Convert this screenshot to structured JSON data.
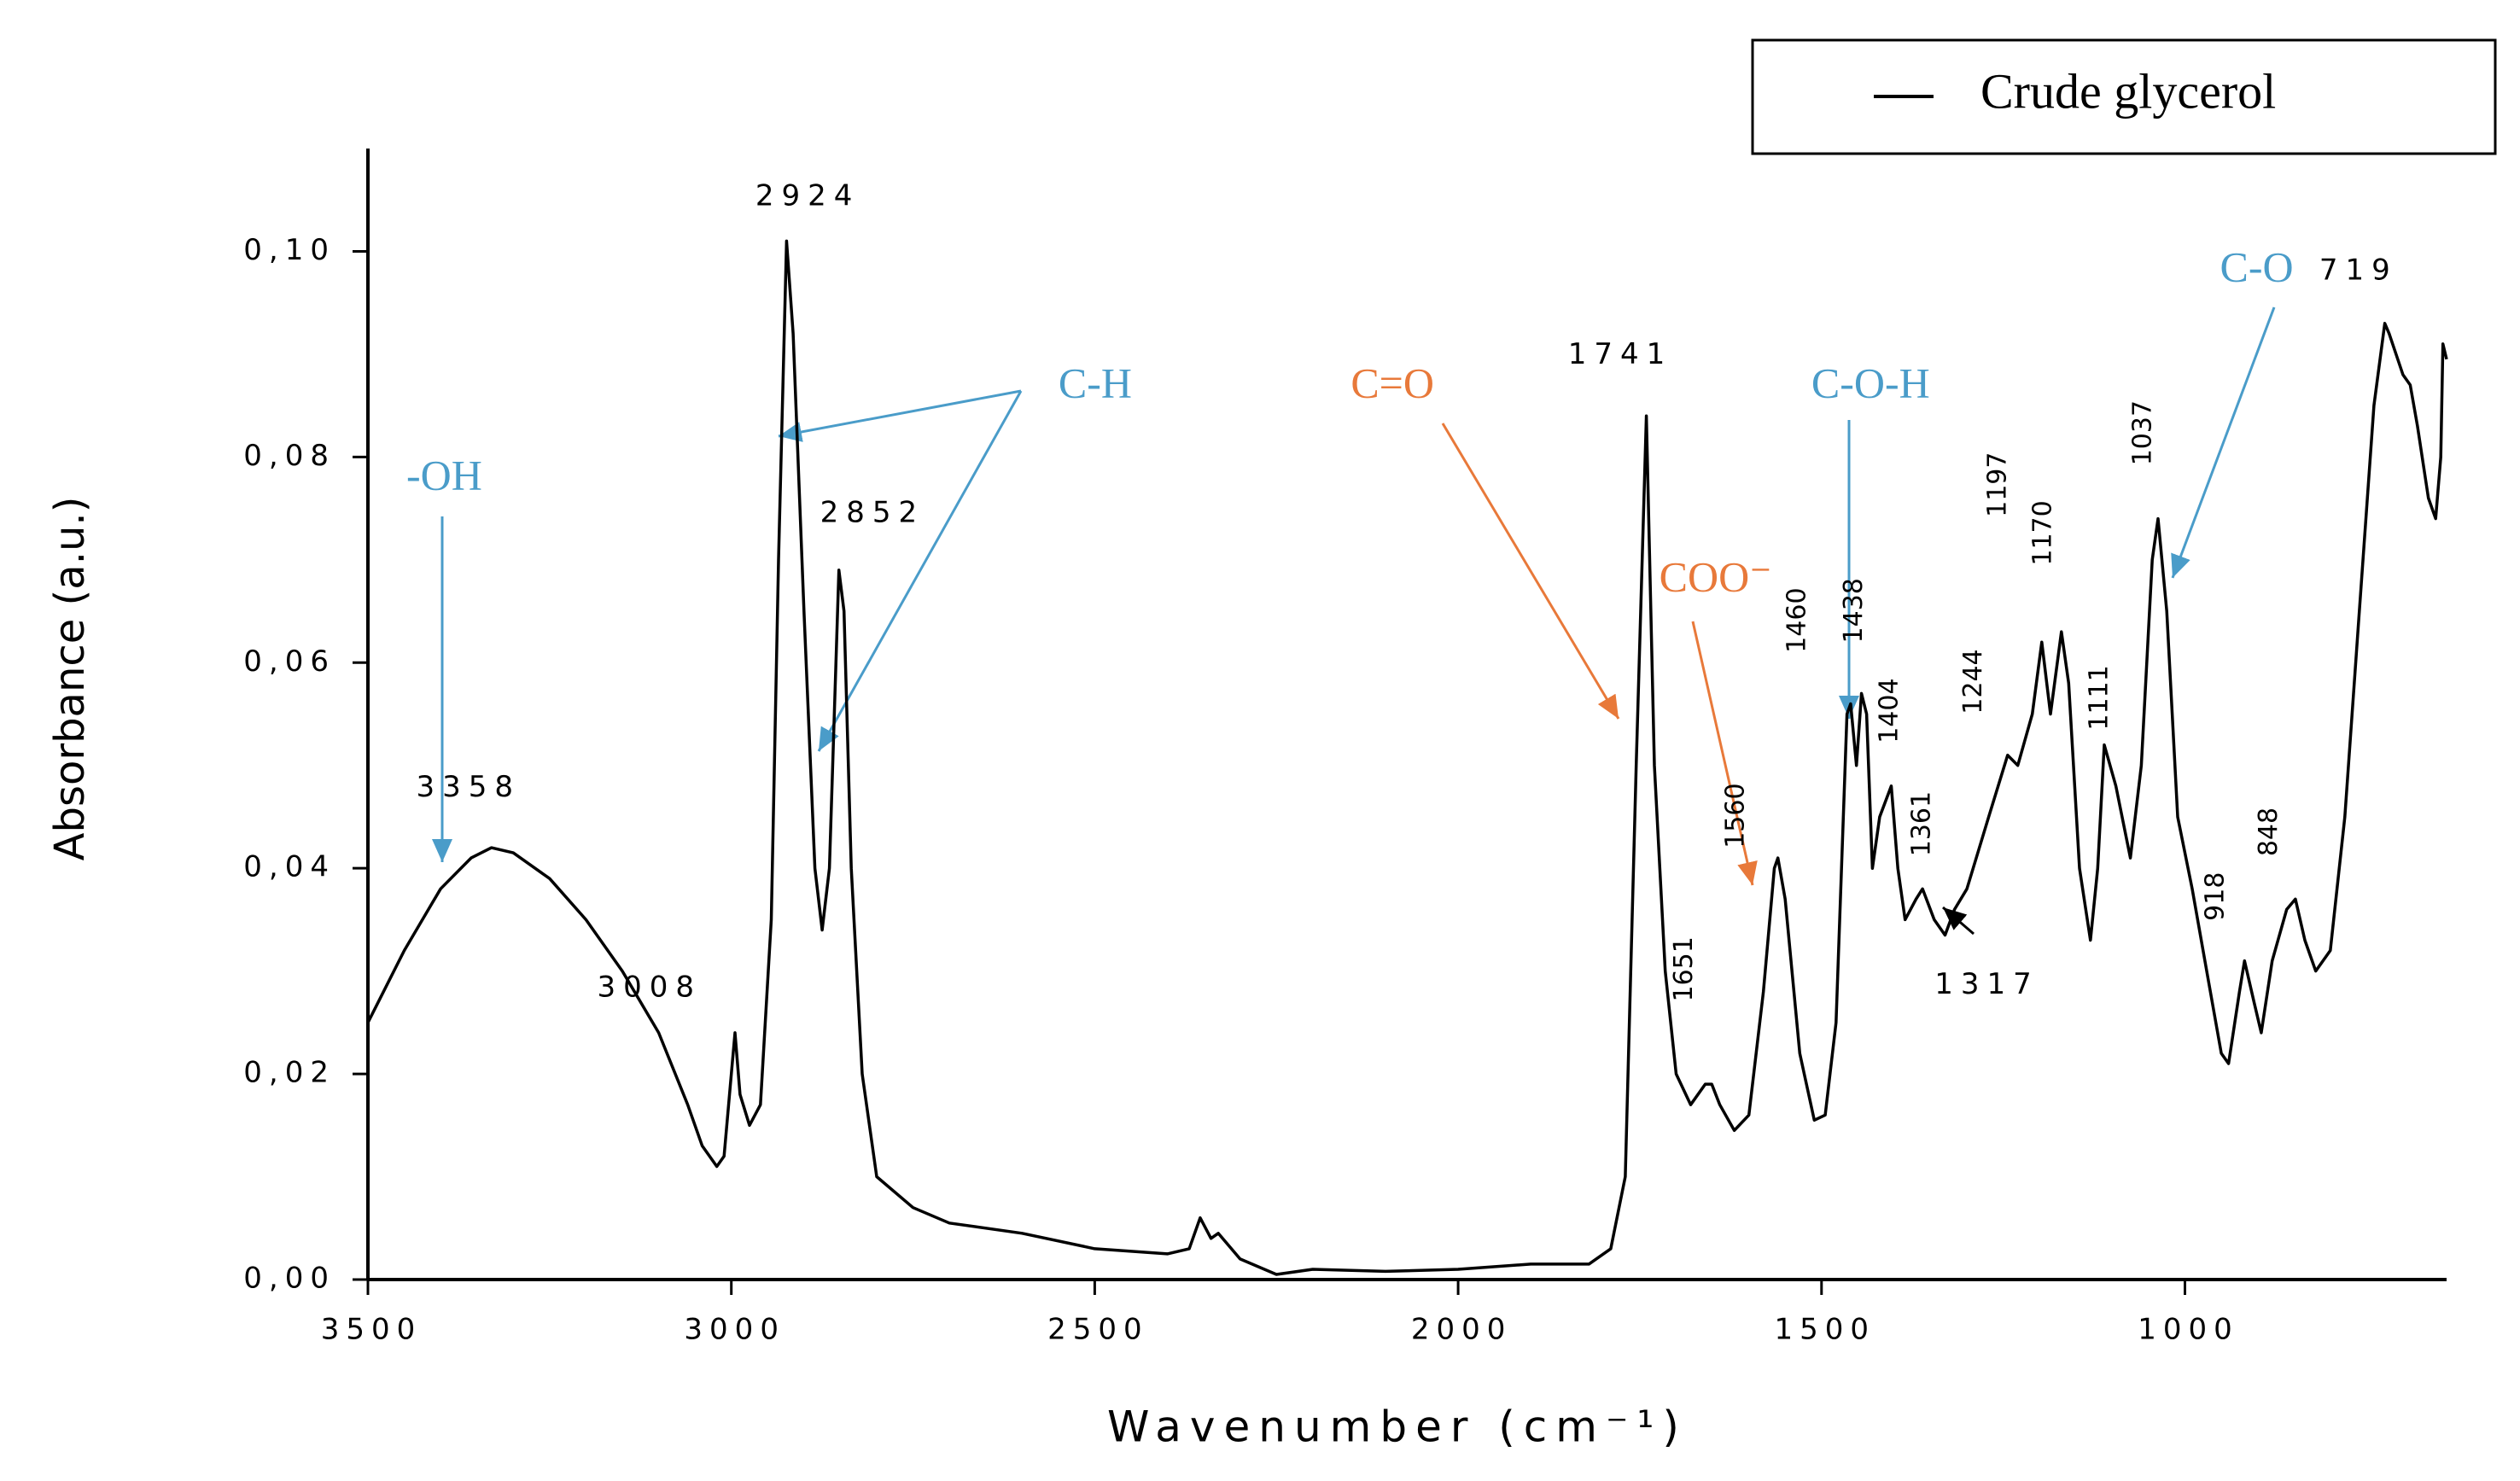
{
  "chart_data": {
    "type": "line",
    "x_label": "Wavenumber (cm⁻¹)",
    "y_label": "Absorbance (a.u.)",
    "xlim": [
      3500,
      640
    ],
    "ylim": [
      0,
      0.11
    ],
    "xticks": [
      3500,
      3000,
      2500,
      2000,
      1500,
      1000
    ],
    "yticks": [
      {
        "value": 0,
        "label": "0,00"
      },
      {
        "value": 0.02,
        "label": "0,02"
      },
      {
        "value": 0.04,
        "label": "0,04"
      },
      {
        "value": 0.06,
        "label": "0,06"
      },
      {
        "value": 0.08,
        "label": "0,08"
      },
      {
        "value": 0.1,
        "label": "0,10"
      }
    ],
    "legend": "top-right",
    "x": [
      3500,
      3450,
      3400,
      3358,
      3330,
      3300,
      3250,
      3200,
      3150,
      3100,
      3060,
      3040,
      3020,
      3010,
      3000,
      2995,
      2988,
      2975,
      2960,
      2945,
      2935,
      2924,
      2915,
      2900,
      2885,
      2875,
      2865,
      2852,
      2845,
      2835,
      2820,
      2800,
      2750,
      2700,
      2600,
      2500,
      2400,
      2370,
      2355,
      2340,
      2330,
      2300,
      2250,
      2200,
      2100,
      2000,
      1900,
      1820,
      1790,
      1770,
      1755,
      1741,
      1730,
      1715,
      1700,
      1680,
      1660,
      1651,
      1640,
      1620,
      1600,
      1580,
      1565,
      1560,
      1550,
      1530,
      1510,
      1495,
      1480,
      1465,
      1460,
      1452,
      1445,
      1438,
      1430,
      1420,
      1404,
      1395,
      1385,
      1370,
      1361,
      1345,
      1330,
      1317,
      1300,
      1270,
      1244,
      1230,
      1210,
      1197,
      1185,
      1170,
      1160,
      1145,
      1130,
      1120,
      1111,
      1095,
      1075,
      1060,
      1045,
      1037,
      1025,
      1010,
      990,
      970,
      950,
      940,
      925,
      918,
      905,
      895,
      880,
      860,
      848,
      835,
      820,
      800,
      780,
      760,
      740,
      725,
      719,
      700,
      690,
      680,
      665,
      655,
      648,
      645,
      640
    ],
    "series": [
      {
        "name": "Crude glycerol",
        "color": "#000000",
        "values": [
          0.025,
          0.032,
          0.038,
          0.041,
          0.042,
          0.0415,
          0.039,
          0.035,
          0.03,
          0.024,
          0.017,
          0.013,
          0.011,
          0.012,
          0.02,
          0.024,
          0.018,
          0.015,
          0.017,
          0.035,
          0.07,
          0.101,
          0.092,
          0.065,
          0.04,
          0.034,
          0.04,
          0.069,
          0.065,
          0.04,
          0.02,
          0.01,
          0.007,
          0.0055,
          0.0045,
          0.003,
          0.0025,
          0.003,
          0.006,
          0.004,
          0.0045,
          0.002,
          0.0005,
          0.001,
          0.0008,
          0.001,
          0.0015,
          0.0015,
          0.003,
          0.01,
          0.05,
          0.084,
          0.05,
          0.03,
          0.02,
          0.017,
          0.019,
          0.019,
          0.017,
          0.0145,
          0.016,
          0.028,
          0.04,
          0.041,
          0.037,
          0.022,
          0.0155,
          0.016,
          0.025,
          0.055,
          0.056,
          0.05,
          0.057,
          0.055,
          0.04,
          0.045,
          0.048,
          0.04,
          0.035,
          0.037,
          0.038,
          0.035,
          0.0335,
          0.036,
          0.038,
          0.045,
          0.051,
          0.05,
          0.055,
          0.062,
          0.055,
          0.063,
          0.058,
          0.04,
          0.033,
          0.04,
          0.052,
          0.048,
          0.041,
          0.05,
          0.07,
          0.074,
          0.065,
          0.045,
          0.038,
          0.03,
          0.022,
          0.021,
          0.028,
          0.031,
          0.027,
          0.024,
          0.031,
          0.036,
          0.037,
          0.033,
          0.03,
          0.032,
          0.045,
          0.065,
          0.085,
          0.093,
          0.092,
          0.088,
          0.087,
          0.083,
          0.076,
          0.074,
          0.08,
          0.091,
          0.0895
        ]
      }
    ],
    "annotations": [
      {
        "text": "3358",
        "color": "#000000"
      },
      {
        "text": "3008",
        "color": "#000000"
      },
      {
        "text": "2924",
        "color": "#000000"
      },
      {
        "text": "2852",
        "color": "#000000"
      },
      {
        "text": "1741",
        "color": "#000000"
      },
      {
        "text": "1651",
        "color": "#000000"
      },
      {
        "text": "1560",
        "color": "#000000"
      },
      {
        "text": "1460",
        "color": "#000000"
      },
      {
        "text": "1438",
        "color": "#000000"
      },
      {
        "text": "1404",
        "color": "#000000"
      },
      {
        "text": "1361",
        "color": "#000000"
      },
      {
        "text": "1317",
        "color": "#000000"
      },
      {
        "text": "1244",
        "color": "#000000"
      },
      {
        "text": "1197",
        "color": "#000000"
      },
      {
        "text": "1170",
        "color": "#000000"
      },
      {
        "text": "1111",
        "color": "#000000"
      },
      {
        "text": "1037",
        "color": "#000000"
      },
      {
        "text": "918",
        "color": "#000000"
      },
      {
        "text": "848",
        "color": "#000000"
      },
      {
        "text": "719",
        "color": "#000000"
      },
      {
        "text": "-OH",
        "color": "#4a9cc9"
      },
      {
        "text": "C-H",
        "color": "#4a9cc9"
      },
      {
        "text": "C=O",
        "color": "#e8793a"
      },
      {
        "text": "COO⁻",
        "color": "#e8793a"
      },
      {
        "text": "C-O-H",
        "color": "#4a9cc9"
      },
      {
        "text": "C-O",
        "color": "#4a9cc9"
      }
    ]
  }
}
